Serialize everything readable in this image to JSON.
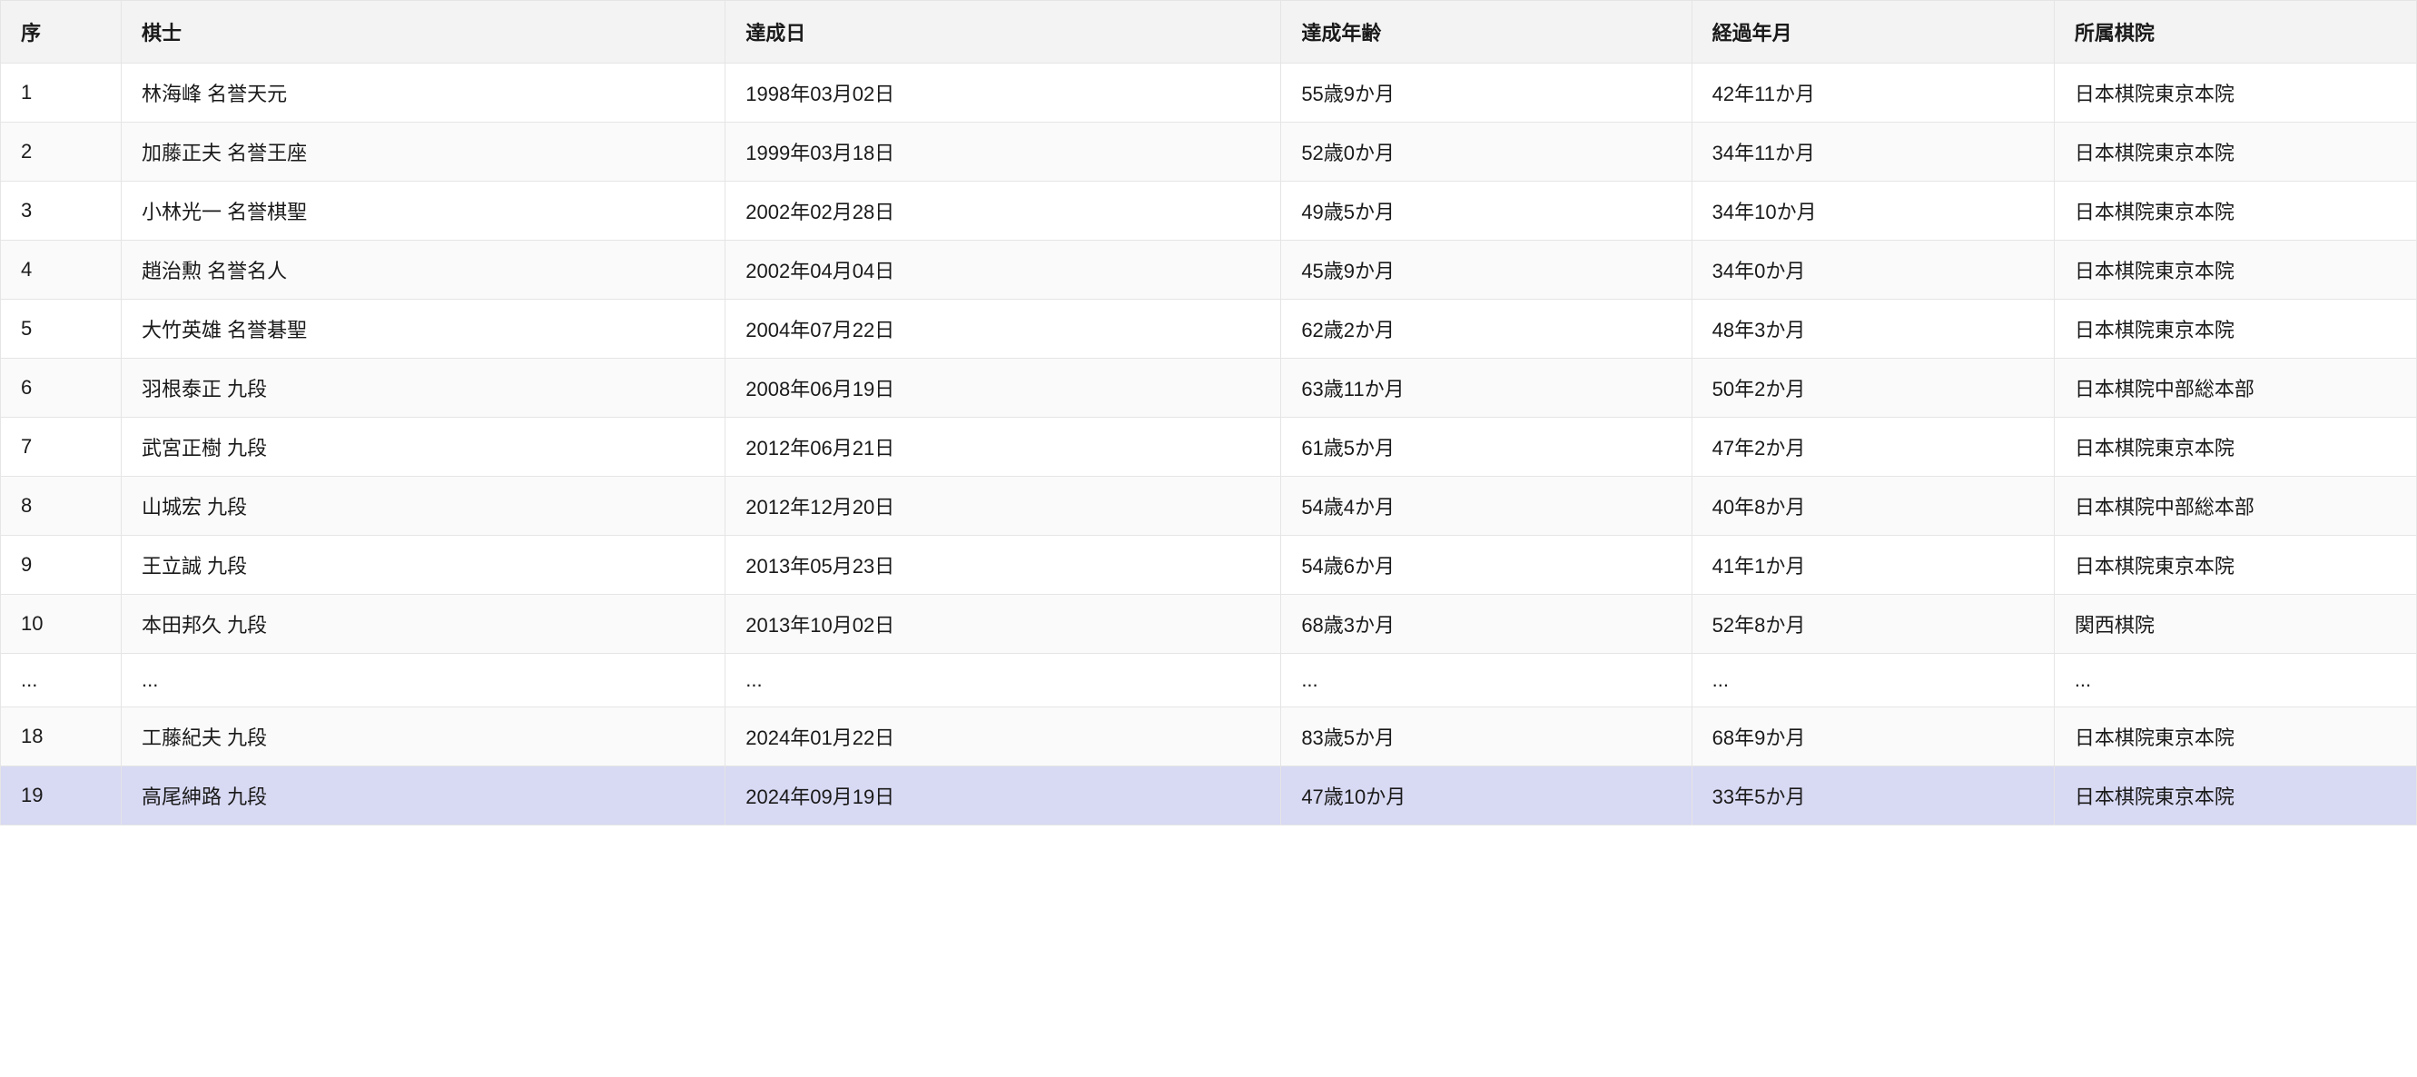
{
  "table": {
    "columns": [
      "序",
      "棋士",
      "達成日",
      "達成年齢",
      "経過年月",
      "所属棋院"
    ],
    "column_classes": [
      "col-seq",
      "col-player",
      "col-date",
      "col-age",
      "col-elapsed",
      "col-affil"
    ],
    "header_bg": "#f3f3f3",
    "border_color": "#e5e5e5",
    "row_odd_bg": "#ffffff",
    "row_even_bg": "#fafafa",
    "highlight_bg": "#d8d9f3",
    "text_color": "#1a1a1a",
    "fontsize": 22,
    "rows": [
      {
        "seq": "1",
        "player": "林海峰 名誉天元",
        "date": "1998年03月02日",
        "age": "55歳9か月",
        "elapsed": "42年11か月",
        "affil": "日本棋院東京本院",
        "highlight": false
      },
      {
        "seq": "2",
        "player": "加藤正夫 名誉王座",
        "date": "1999年03月18日",
        "age": "52歳0か月",
        "elapsed": "34年11か月",
        "affil": "日本棋院東京本院",
        "highlight": false
      },
      {
        "seq": "3",
        "player": "小林光一 名誉棋聖",
        "date": "2002年02月28日",
        "age": "49歳5か月",
        "elapsed": "34年10か月",
        "affil": "日本棋院東京本院",
        "highlight": false
      },
      {
        "seq": "4",
        "player": "趙治勲 名誉名人",
        "date": "2002年04月04日",
        "age": "45歳9か月",
        "elapsed": "34年0か月",
        "affil": "日本棋院東京本院",
        "highlight": false
      },
      {
        "seq": "5",
        "player": "大竹英雄 名誉碁聖",
        "date": "2004年07月22日",
        "age": "62歳2か月",
        "elapsed": "48年3か月",
        "affil": "日本棋院東京本院",
        "highlight": false
      },
      {
        "seq": "6",
        "player": "羽根泰正 九段",
        "date": "2008年06月19日",
        "age": "63歳11か月",
        "elapsed": "50年2か月",
        "affil": "日本棋院中部総本部",
        "highlight": false
      },
      {
        "seq": "7",
        "player": "武宮正樹 九段",
        "date": "2012年06月21日",
        "age": "61歳5か月",
        "elapsed": "47年2か月",
        "affil": "日本棋院東京本院",
        "highlight": false
      },
      {
        "seq": "8",
        "player": "山城宏 九段",
        "date": "2012年12月20日",
        "age": "54歳4か月",
        "elapsed": "40年8か月",
        "affil": "日本棋院中部総本部",
        "highlight": false
      },
      {
        "seq": "9",
        "player": "王立誠 九段",
        "date": "2013年05月23日",
        "age": "54歳6か月",
        "elapsed": "41年1か月",
        "affil": "日本棋院東京本院",
        "highlight": false
      },
      {
        "seq": "10",
        "player": "本田邦久 九段",
        "date": "2013年10月02日",
        "age": "68歳3か月",
        "elapsed": "52年8か月",
        "affil": "関西棋院",
        "highlight": false
      },
      {
        "seq": "...",
        "player": "...",
        "date": "...",
        "age": "...",
        "elapsed": "...",
        "affil": "...",
        "highlight": false
      },
      {
        "seq": "18",
        "player": "工藤紀夫 九段",
        "date": "2024年01月22日",
        "age": "83歳5か月",
        "elapsed": "68年9か月",
        "affil": "日本棋院東京本院",
        "highlight": false
      },
      {
        "seq": "19",
        "player": "高尾紳路 九段",
        "date": "2024年09月19日",
        "age": "47歳10か月",
        "elapsed": "33年5か月",
        "affil": "日本棋院東京本院",
        "highlight": true
      }
    ]
  }
}
